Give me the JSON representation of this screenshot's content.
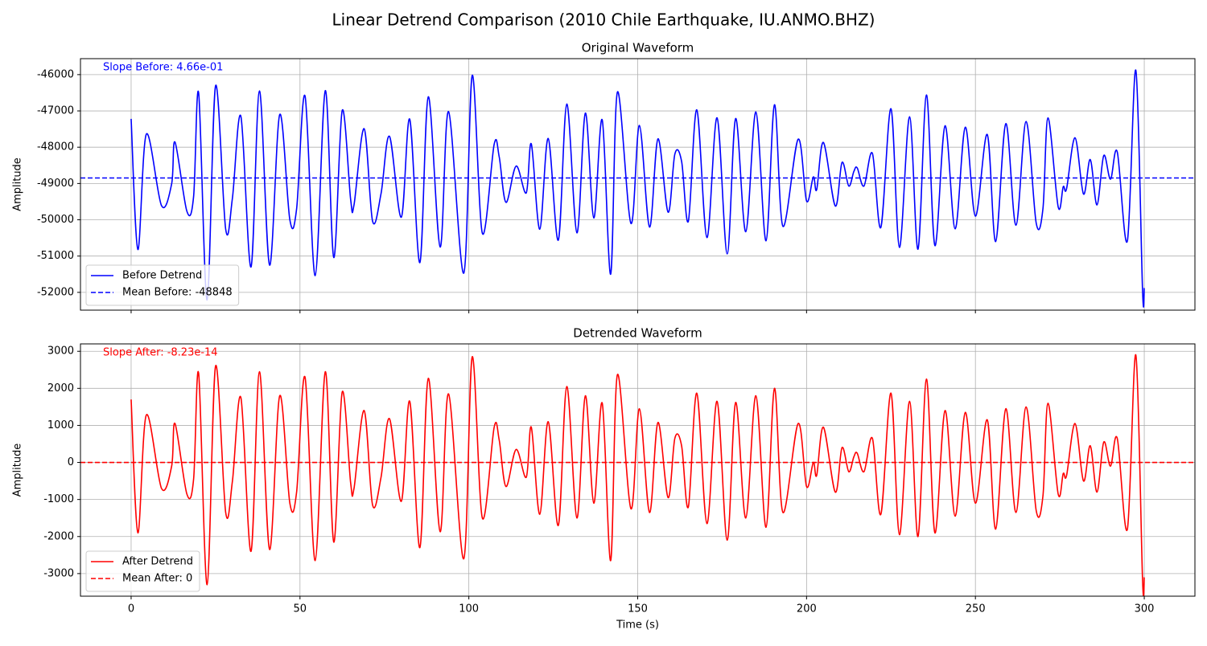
{
  "title": "Linear Detrend Comparison (2010 Chile Earthquake, IU.ANMO.BHZ)",
  "chart_data": [
    {
      "type": "line",
      "title": "Original Waveform",
      "ylabel": "Amplitude",
      "annotation": "Slope Before: 4.66e-01",
      "x": [
        0,
        2,
        4.5,
        9,
        12,
        13,
        16.5,
        18.5,
        20,
        22.5,
        25,
        28,
        30,
        32.5,
        35.5,
        38,
        41,
        44,
        47,
        49,
        51.5,
        54.5,
        57.5,
        60,
        62.5,
        65,
        66,
        69,
        71.5,
        74,
        76.5,
        80,
        82.5,
        85.5,
        88,
        91.5,
        94,
        98.5,
        101,
        104,
        107.5,
        109,
        111,
        114,
        117,
        118.5,
        121,
        123.5,
        126.5,
        129,
        132,
        134.5,
        137,
        139.5,
        142,
        144,
        148,
        150.5,
        153.5,
        156,
        159,
        161,
        163,
        165,
        167.5,
        170.5,
        173.5,
        176.5,
        179,
        182,
        185,
        188,
        190.5,
        193,
        197.5,
        200,
        202,
        203,
        205,
        208.5,
        210.5,
        212.5,
        214,
        215,
        217,
        219.5,
        222,
        225,
        227.5,
        230.5,
        233,
        235.5,
        238,
        241,
        244,
        247,
        250,
        253.5,
        256,
        259,
        262,
        265,
        268,
        270,
        271.5,
        274.5,
        276,
        277,
        279.5,
        282,
        284,
        286,
        288,
        290,
        292,
        295,
        297.5,
        299.5,
        300
      ],
      "series": [
        {
          "name": "Before Detrend",
          "color": "#0000ff",
          "values": [
            -47220,
            -50820,
            -47640,
            -49610,
            -49010,
            -47860,
            -49760,
            -49360,
            -46510,
            -52210,
            -46310,
            -50260,
            -49400,
            -47150,
            -51300,
            -46450,
            -51250,
            -47100,
            -50000,
            -49700,
            -46590,
            -51540,
            -46440,
            -51040,
            -46990,
            -49440,
            -49590,
            -47490,
            -50040,
            -49280,
            -47700,
            -49930,
            -47230,
            -51180,
            -46610,
            -50750,
            -47020,
            -51470,
            -46020,
            -50370,
            -47920,
            -48270,
            -49520,
            -48520,
            -49260,
            -47910,
            -50260,
            -47760,
            -50560,
            -46810,
            -50360,
            -47060,
            -49950,
            -47250,
            -51500,
            -46480,
            -50100,
            -47400,
            -50200,
            -47770,
            -49790,
            -48190,
            -48390,
            -50040,
            -46970,
            -50490,
            -47190,
            -50940,
            -47210,
            -50330,
            -47030,
            -50580,
            -46830,
            -50180,
            -47780,
            -49480,
            -48820,
            -49170,
            -47870,
            -49620,
            -48420,
            -49070,
            -48670,
            -48570,
            -49070,
            -48170,
            -50210,
            -46940,
            -50760,
            -47160,
            -50810,
            -46560,
            -50710,
            -47410,
            -50250,
            -47450,
            -49900,
            -47650,
            -50600,
            -47350,
            -50150,
            -47290,
            -50090,
            -49690,
            -47190,
            -49640,
            -49090,
            -49140,
            -47740,
            -49290,
            -48340,
            -49590,
            -48230,
            -48880,
            -48130,
            -50580,
            -45880,
            -51980,
            -51880
          ]
        }
      ],
      "mean_line": {
        "name": "Mean Before: -48848",
        "value": -48848,
        "color": "#0000ff"
      },
      "xlim": [
        -15,
        315
      ],
      "ylim": [
        -52490,
        -45560
      ],
      "yticks": [
        -52000,
        -51000,
        -50000,
        -49000,
        -48000,
        -47000,
        -46000
      ],
      "grid": true,
      "legend": "lower left"
    },
    {
      "type": "line",
      "title": "Detrended Waveform",
      "ylabel": "Amplitude",
      "xlabel": "Time (s)",
      "annotation": "Slope After: -8.23e-14",
      "x": [
        0,
        2,
        4.5,
        9,
        12,
        13,
        16.5,
        18.5,
        20,
        22.5,
        25,
        28,
        30,
        32.5,
        35.5,
        38,
        41,
        44,
        47,
        49,
        51.5,
        54.5,
        57.5,
        60,
        62.5,
        65,
        66,
        69,
        71.5,
        74,
        76.5,
        80,
        82.5,
        85.5,
        88,
        91.5,
        94,
        98.5,
        101,
        104,
        107.5,
        109,
        111,
        114,
        117,
        118.5,
        121,
        123.5,
        126.5,
        129,
        132,
        134.5,
        137,
        139.5,
        142,
        144,
        148,
        150.5,
        153.5,
        156,
        159,
        161,
        163,
        165,
        167.5,
        170.5,
        173.5,
        176.5,
        179,
        182,
        185,
        188,
        190.5,
        193,
        197.5,
        200,
        202,
        203,
        205,
        208.5,
        210.5,
        212.5,
        214,
        215,
        217,
        219.5,
        222,
        225,
        227.5,
        230.5,
        233,
        235.5,
        238,
        241,
        244,
        247,
        250,
        253.5,
        256,
        259,
        262,
        265,
        268,
        270,
        271.5,
        274.5,
        276,
        277,
        279.5,
        282,
        284,
        286,
        288,
        290,
        292,
        295,
        297.5,
        299.5,
        300
      ],
      "series": [
        {
          "name": "After Detrend",
          "color": "#ff0000",
          "values": [
            1700,
            -1900,
            1280,
            -700,
            -100,
            1050,
            -850,
            -450,
            2400,
            -3300,
            2600,
            -1350,
            -500,
            1750,
            -2400,
            2450,
            -2350,
            1800,
            -1100,
            -800,
            2300,
            -2650,
            2450,
            -2150,
            1900,
            -550,
            -700,
            1400,
            -1150,
            -400,
            1180,
            -1050,
            1650,
            -2300,
            2270,
            -1870,
            1850,
            -2600,
            2850,
            -1500,
            950,
            600,
            -650,
            350,
            -400,
            950,
            -1400,
            1100,
            -1700,
            2050,
            -1500,
            1800,
            -1100,
            1600,
            -2650,
            2370,
            -1250,
            1450,
            -1350,
            1080,
            -950,
            650,
            450,
            -1200,
            1870,
            -1650,
            1650,
            -2100,
            1620,
            -1500,
            1800,
            -1750,
            2000,
            -1350,
            1050,
            -650,
            0,
            -350,
            950,
            -800,
            400,
            -250,
            150,
            250,
            -250,
            650,
            -1400,
            1870,
            -1950,
            1650,
            -2000,
            2250,
            -1900,
            1400,
            -1450,
            1350,
            -1100,
            1150,
            -1800,
            1450,
            -1350,
            1500,
            -1300,
            -900,
            1600,
            -850,
            -300,
            -350,
            1050,
            -500,
            450,
            -800,
            550,
            -100,
            650,
            -1800,
            2900,
            -3200,
            -3100
          ]
        }
      ],
      "mean_line": {
        "name": "Mean After: 0",
        "value": 0,
        "color": "#ff0000"
      },
      "xlim": [
        -15,
        315
      ],
      "ylim": [
        -3610,
        3200
      ],
      "xticks": [
        0,
        50,
        100,
        150,
        200,
        250,
        300
      ],
      "yticks": [
        -3000,
        -2000,
        -1000,
        0,
        1000,
        2000,
        3000
      ],
      "grid": true,
      "legend": "lower left"
    }
  ]
}
